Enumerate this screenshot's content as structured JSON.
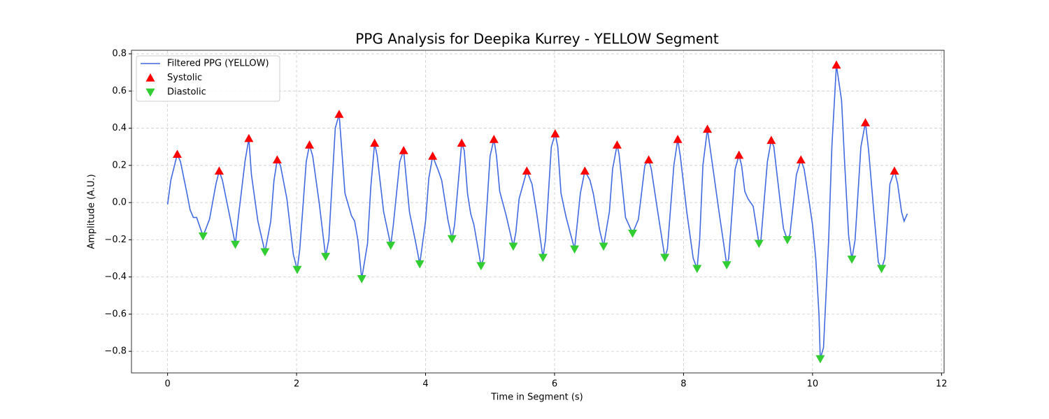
{
  "chart_data": {
    "type": "line",
    "title": "PPG Analysis for Deepika Kurrey - YELLOW Segment",
    "xlabel": "Time in Segment (s)",
    "ylabel": "Amplitude (A.U.)",
    "xlim": [
      -0.56,
      12.04
    ],
    "ylim": [
      -0.916,
      0.819
    ],
    "xticks": [
      0,
      2,
      4,
      6,
      8,
      10,
      12
    ],
    "yticks": [
      {
        "value": -0.8,
        "label": "−0.8"
      },
      {
        "value": -0.6,
        "label": "−0.6"
      },
      {
        "value": -0.4,
        "label": "−0.4"
      },
      {
        "value": -0.2,
        "label": "−0.2"
      },
      {
        "value": 0,
        "label": "0.0"
      },
      0.2,
      0.4,
      0.6,
      0.8
    ],
    "grid": true,
    "legend": "upper left",
    "series": [
      {
        "name": "Filtered PPG (YELLOW)",
        "type": "line",
        "color": "#4169e1",
        "x": [
          0,
          0.05,
          0.15,
          0.2,
          0.3,
          0.35,
          0.4,
          0.45,
          0.55,
          0.65,
          0.75,
          0.8,
          0.85,
          0.95,
          1.05,
          1.1,
          1.2,
          1.26,
          1.3,
          1.4,
          1.51,
          1.6,
          1.65,
          1.7,
          1.75,
          1.85,
          1.95,
          2.01,
          2.05,
          2.15,
          2.2,
          2.25,
          2.35,
          2.45,
          2.5,
          2.6,
          2.66,
          2.75,
          2.85,
          2.9,
          2.95,
          3.01,
          3.1,
          3.15,
          3.21,
          3.25,
          3.35,
          3.46,
          3.5,
          3.6,
          3.66,
          3.75,
          3.85,
          3.91,
          4.0,
          4.05,
          4.11,
          4.2,
          4.25,
          4.35,
          4.41,
          4.45,
          4.56,
          4.6,
          4.65,
          4.7,
          4.75,
          4.86,
          4.9,
          5.0,
          5.06,
          5.1,
          5.15,
          5.25,
          5.36,
          5.4,
          5.45,
          5.57,
          5.65,
          5.72,
          5.82,
          5.86,
          5.95,
          6.01,
          6.05,
          6.1,
          6.18,
          6.31,
          6.35,
          6.4,
          6.47,
          6.55,
          6.6,
          6.7,
          6.76,
          6.85,
          6.9,
          6.97,
          7.0,
          7.1,
          7.21,
          7.3,
          7.4,
          7.46,
          7.5,
          7.6,
          7.71,
          7.75,
          7.85,
          7.91,
          7.95,
          8.05,
          8.15,
          8.21,
          8.25,
          8.3,
          8.37,
          8.45,
          8.55,
          8.67,
          8.7,
          8.8,
          8.86,
          8.9,
          8.95,
          9.0,
          9.08,
          9.17,
          9.2,
          9.3,
          9.36,
          9.4,
          9.5,
          9.55,
          9.61,
          9.65,
          9.75,
          9.82,
          9.87,
          9.95,
          10.0,
          10.05,
          10.1,
          10.12,
          10.17,
          10.25,
          10.3,
          10.37,
          10.45,
          10.5,
          10.56,
          10.61,
          10.66,
          10.75,
          10.82,
          10.87,
          10.95,
          11.02,
          11.07,
          11.12,
          11.2,
          11.27,
          11.32,
          11.38,
          11.42,
          11.47
        ],
        "y": [
          -0.01,
          0.12,
          0.26,
          0.22,
          0.05,
          -0.04,
          -0.08,
          -0.08,
          -0.18,
          -0.09,
          0.1,
          0.17,
          0.12,
          -0.05,
          -0.225,
          -0.07,
          0.22,
          0.345,
          0.15,
          -0.1,
          -0.265,
          -0.1,
          0.12,
          0.23,
          0.2,
          0.02,
          -0.28,
          -0.36,
          -0.25,
          0.22,
          0.31,
          0.25,
          0.0,
          -0.29,
          -0.2,
          0.4,
          0.475,
          0.05,
          -0.07,
          -0.1,
          -0.2,
          -0.41,
          -0.22,
          0.08,
          0.32,
          0.25,
          -0.05,
          -0.23,
          -0.12,
          0.22,
          0.28,
          -0.05,
          -0.22,
          -0.33,
          -0.1,
          0.13,
          0.25,
          0.17,
          0.12,
          -0.1,
          -0.195,
          -0.12,
          0.32,
          0.28,
          0.05,
          -0.06,
          -0.12,
          -0.34,
          -0.3,
          0.25,
          0.34,
          0.25,
          0.06,
          -0.07,
          -0.235,
          -0.16,
          0.02,
          0.17,
          0.1,
          -0.05,
          -0.295,
          -0.2,
          0.3,
          0.37,
          0.3,
          0.05,
          -0.08,
          -0.25,
          -0.12,
          0.05,
          0.17,
          0.12,
          0.05,
          -0.15,
          -0.235,
          -0.05,
          0.18,
          0.31,
          0.26,
          -0.08,
          -0.165,
          -0.09,
          0.2,
          0.23,
          0.18,
          -0.05,
          -0.295,
          -0.25,
          0.2,
          0.34,
          0.25,
          -0.05,
          -0.3,
          -0.355,
          -0.2,
          0.2,
          0.395,
          0.2,
          -0.05,
          -0.335,
          -0.3,
          0.18,
          0.255,
          0.2,
          0.06,
          0.02,
          -0.02,
          -0.22,
          -0.2,
          0.22,
          0.335,
          0.3,
          0.0,
          -0.14,
          -0.2,
          -0.17,
          0.15,
          0.23,
          0.18,
          0.0,
          -0.12,
          -0.3,
          -0.6,
          -0.84,
          -0.78,
          -0.2,
          0.3,
          0.74,
          0.55,
          0.2,
          -0.18,
          -0.305,
          -0.2,
          0.3,
          0.43,
          0.28,
          -0.05,
          -0.32,
          -0.355,
          -0.3,
          0.1,
          0.17,
          0.1,
          -0.05,
          -0.1,
          -0.06
        ]
      },
      {
        "name": "Systolic",
        "type": "scatter",
        "marker": "triangle-up",
        "color": "#ff0000",
        "x": [
          0.15,
          0.8,
          1.26,
          1.7,
          2.2,
          2.66,
          3.21,
          3.66,
          4.11,
          4.56,
          5.06,
          5.57,
          6.01,
          6.47,
          6.97,
          7.46,
          7.91,
          8.37,
          8.86,
          9.36,
          9.82,
          10.37,
          10.82,
          11.27
        ],
        "y": [
          0.26,
          0.17,
          0.345,
          0.23,
          0.31,
          0.475,
          0.32,
          0.28,
          0.25,
          0.32,
          0.34,
          0.17,
          0.37,
          0.17,
          0.31,
          0.23,
          0.34,
          0.395,
          0.255,
          0.335,
          0.23,
          0.74,
          0.43,
          0.17
        ]
      },
      {
        "name": "Diastolic",
        "type": "scatter",
        "marker": "triangle-down",
        "color": "#32cd32",
        "x": [
          0.55,
          1.05,
          1.51,
          2.01,
          2.45,
          3.01,
          3.46,
          3.91,
          4.41,
          4.86,
          5.36,
          5.82,
          6.31,
          6.76,
          7.21,
          7.71,
          8.21,
          8.67,
          9.17,
          9.61,
          10.12,
          10.61,
          11.07
        ],
        "y": [
          -0.18,
          -0.225,
          -0.265,
          -0.36,
          -0.29,
          -0.41,
          -0.23,
          -0.33,
          -0.195,
          -0.34,
          -0.235,
          -0.295,
          -0.25,
          -0.235,
          -0.165,
          -0.295,
          -0.355,
          -0.335,
          -0.22,
          -0.2,
          -0.84,
          -0.305,
          -0.355
        ]
      }
    ]
  }
}
